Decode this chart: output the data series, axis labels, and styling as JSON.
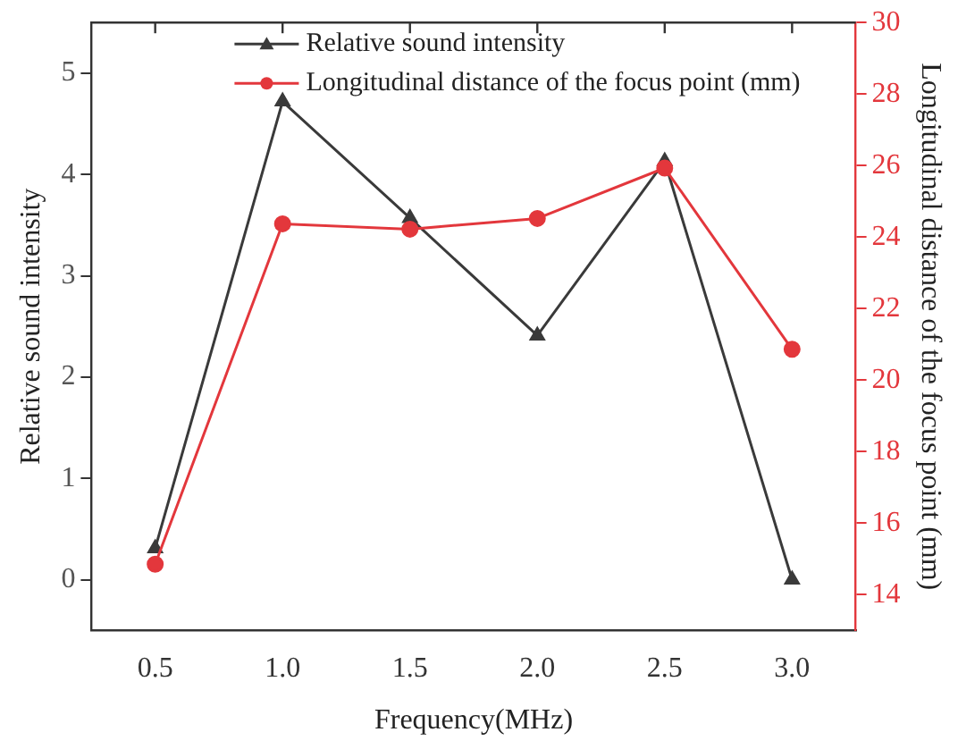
{
  "chart_data": {
    "type": "line",
    "xlabel": "Frequency(MHz)",
    "ylabel": "Relative sound intensity",
    "y2label": "Longitudinal distance of the focus point (mm)",
    "x": [
      0.5,
      1.0,
      1.5,
      2.0,
      2.5,
      3.0
    ],
    "xlim": [
      0.25,
      3.25
    ],
    "xticks": [
      0.5,
      {
        "value": 1,
        "label": "1.0"
      },
      1.5,
      {
        "value": 2,
        "label": "2.0"
      },
      2.5,
      {
        "value": 3,
        "label": "3.0"
      }
    ],
    "ylim": [
      -0.5,
      5.5
    ],
    "yticks": [
      0,
      1,
      2,
      3,
      4,
      5
    ],
    "y2lim": [
      13,
      30
    ],
    "y2ticks": [
      14,
      16,
      18,
      20,
      22,
      24,
      26,
      28,
      30
    ],
    "series": [
      {
        "name": "Relative sound intensity",
        "color": "#3a3a3a",
        "marker": "triangle",
        "values": [
          0.31,
          4.72,
          3.57,
          2.41,
          4.13,
          0
        ]
      },
      {
        "name": "Longitudinal distance of the focus point (mm)",
        "color": "#e3373c",
        "marker": "circle",
        "axis": "y2",
        "values": [
          14.85,
          24.37,
          24.22,
          24.52,
          25.93,
          20.86
        ]
      }
    ],
    "legend": "top",
    "grid": false,
    "line_style": "solid"
  }
}
